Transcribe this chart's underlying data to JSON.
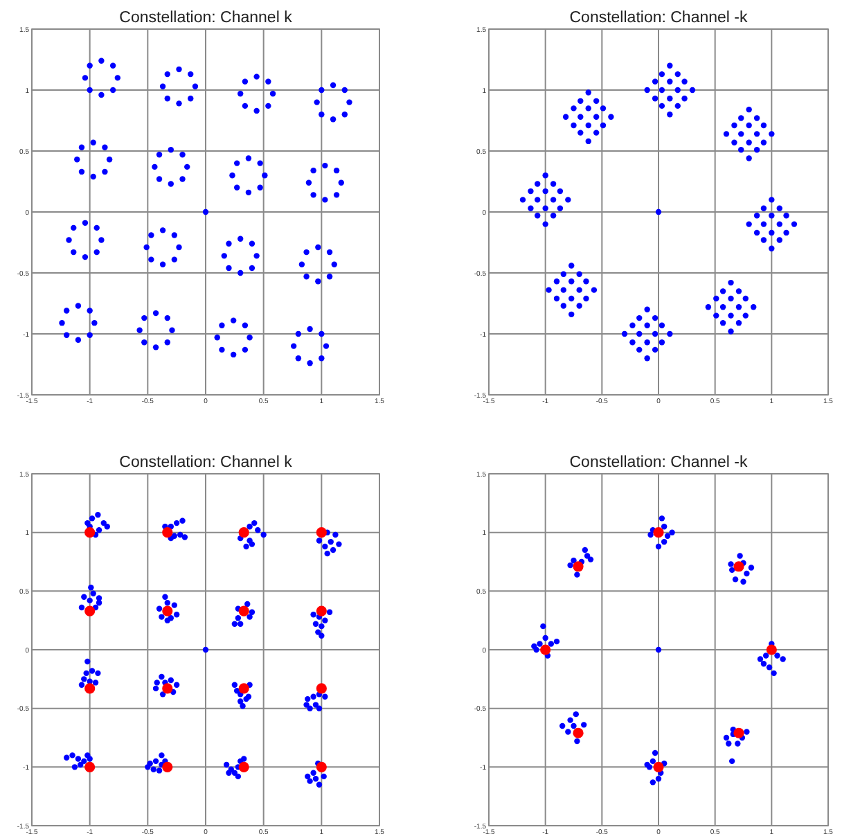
{
  "chart_data": [
    {
      "type": "scatter",
      "title": "Constellation: Channel k",
      "xlim": [
        -1.5,
        1.5
      ],
      "ylim": [
        -1.5,
        1.5
      ],
      "xticks": [
        -1.5,
        -1,
        -0.5,
        0,
        0.5,
        1,
        1.5
      ],
      "yticks": [
        -1.5,
        -1,
        -0.5,
        0,
        0.5,
        1,
        1.5
      ],
      "grid": true,
      "marker": "circle",
      "series": [
        {
          "color": "#0000ff",
          "x": [
            -0.76,
            -0.8,
            -0.9,
            -1.0,
            -1.04,
            -1.0,
            -0.9,
            -0.8
          ],
          "values": [
            1.1,
            1.2,
            1.24,
            1.2,
            1.1,
            1.0,
            0.96,
            1.0
          ]
        },
        {
          "color": "#0000ff",
          "x": [
            -0.09,
            -0.13,
            -0.23,
            -0.33,
            -0.37,
            -0.33,
            -0.23,
            -0.13
          ],
          "values": [
            1.03,
            1.13,
            1.17,
            1.13,
            1.03,
            0.93,
            0.89,
            0.93
          ]
        },
        {
          "color": "#0000ff",
          "x": [
            0.58,
            0.54,
            0.44,
            0.34,
            0.3,
            0.34,
            0.44,
            0.54
          ],
          "values": [
            0.97,
            1.07,
            1.11,
            1.07,
            0.97,
            0.87,
            0.83,
            0.87
          ]
        },
        {
          "color": "#0000ff",
          "x": [
            1.24,
            1.2,
            1.1,
            1.0,
            0.96,
            1.0,
            1.1,
            1.2
          ],
          "values": [
            0.9,
            1.0,
            1.04,
            1.0,
            0.9,
            0.8,
            0.76,
            0.8
          ]
        },
        {
          "color": "#0000ff",
          "x": [
            -0.83,
            -0.87,
            -0.97,
            -1.07,
            -1.11,
            -1.07,
            -0.97,
            -0.87
          ],
          "values": [
            0.43,
            0.53,
            0.57,
            0.53,
            0.43,
            0.33,
            0.29,
            0.33
          ]
        },
        {
          "color": "#0000ff",
          "x": [
            -0.16,
            -0.2,
            -0.3,
            -0.4,
            -0.44,
            -0.4,
            -0.3,
            -0.2
          ],
          "values": [
            0.37,
            0.47,
            0.51,
            0.47,
            0.37,
            0.27,
            0.23,
            0.27
          ]
        },
        {
          "color": "#0000ff",
          "x": [
            0.51,
            0.47,
            0.37,
            0.27,
            0.23,
            0.27,
            0.37,
            0.47
          ],
          "values": [
            0.3,
            0.4,
            0.44,
            0.4,
            0.3,
            0.2,
            0.16,
            0.2
          ]
        },
        {
          "color": "#0000ff",
          "x": [
            1.17,
            1.13,
            1.03,
            0.93,
            0.89,
            0.93,
            1.03,
            1.13
          ],
          "values": [
            0.24,
            0.34,
            0.38,
            0.34,
            0.24,
            0.14,
            0.1,
            0.14
          ]
        },
        {
          "color": "#0000ff",
          "x": [
            -0.9,
            -0.94,
            -1.04,
            -1.14,
            -1.18,
            -1.14,
            -1.04,
            -0.94
          ],
          "values": [
            -0.23,
            -0.13,
            -0.09,
            -0.13,
            -0.23,
            -0.33,
            -0.37,
            -0.33
          ]
        },
        {
          "color": "#0000ff",
          "x": [
            -0.23,
            -0.27,
            -0.37,
            -0.47,
            -0.51,
            -0.47,
            -0.37,
            -0.27
          ],
          "values": [
            -0.29,
            -0.19,
            -0.15,
            -0.19,
            -0.29,
            -0.39,
            -0.43,
            -0.39
          ]
        },
        {
          "color": "#0000ff",
          "x": [
            0.44,
            0.4,
            0.3,
            0.2,
            0.16,
            0.2,
            0.3,
            0.4
          ],
          "values": [
            -0.36,
            -0.26,
            -0.22,
            -0.26,
            -0.36,
            -0.46,
            -0.5,
            -0.46
          ]
        },
        {
          "color": "#0000ff",
          "x": [
            1.11,
            1.07,
            0.97,
            0.87,
            0.83,
            0.87,
            0.97,
            1.07
          ],
          "values": [
            -0.43,
            -0.33,
            -0.29,
            -0.33,
            -0.43,
            -0.53,
            -0.57,
            -0.53
          ]
        },
        {
          "color": "#0000ff",
          "x": [
            -0.96,
            -1.0,
            -1.1,
            -1.2,
            -1.24,
            -1.2,
            -1.1,
            -1.0
          ],
          "values": [
            -0.91,
            -0.81,
            -0.77,
            -0.81,
            -0.91,
            -1.01,
            -1.05,
            -1.01
          ]
        },
        {
          "color": "#0000ff",
          "x": [
            -0.29,
            -0.33,
            -0.43,
            -0.53,
            -0.57,
            -0.53,
            -0.43,
            -0.33
          ],
          "values": [
            -0.97,
            -0.87,
            -0.83,
            -0.87,
            -0.97,
            -1.07,
            -1.11,
            -1.07
          ]
        },
        {
          "color": "#0000ff",
          "x": [
            0.38,
            0.34,
            0.24,
            0.14,
            0.1,
            0.14,
            0.24,
            0.34
          ],
          "values": [
            -1.03,
            -0.93,
            -0.89,
            -0.93,
            -1.03,
            -1.13,
            -1.17,
            -1.13
          ]
        },
        {
          "color": "#0000ff",
          "x": [
            1.04,
            1.0,
            0.9,
            0.8,
            0.76,
            0.8,
            0.9,
            1.0
          ],
          "values": [
            -1.1,
            -1.0,
            -0.96,
            -1.0,
            -1.1,
            -1.2,
            -1.24,
            -1.2
          ]
        },
        {
          "color": "#0000ff",
          "x": [
            0
          ],
          "values": [
            0
          ]
        }
      ]
    },
    {
      "type": "scatter",
      "title": "Constellation: Channel -k",
      "xlim": [
        -1.5,
        1.5
      ],
      "ylim": [
        -1.5,
        1.5
      ],
      "xticks": [
        -1.5,
        -1,
        -0.5,
        0,
        0.5,
        1,
        1.5
      ],
      "yticks": [
        -1.5,
        -1,
        -0.5,
        0,
        0.5,
        1,
        1.5
      ],
      "grid": true,
      "marker": "circle",
      "series": [
        {
          "color": "#0000ff",
          "x": [
            -0.1,
            -0.03,
            0.03,
            0.1,
            -0.03,
            0.03,
            0.1,
            0.17,
            0.03,
            0.1,
            0.17,
            0.23,
            0.1,
            0.17,
            0.23,
            0.3
          ],
          "values": [
            1,
            0.93,
            0.87,
            0.8,
            1.07,
            1,
            0.93,
            0.87,
            1.13,
            1.07,
            1,
            0.93,
            1.2,
            1.13,
            1.07,
            1
          ]
        },
        {
          "color": "#0000ff",
          "x": [
            -0.82,
            -0.75,
            -0.69,
            -0.62,
            -0.75,
            -0.69,
            -0.62,
            -0.55,
            -0.69,
            -0.62,
            -0.55,
            -0.49,
            -0.62,
            -0.55,
            -0.49,
            -0.42
          ],
          "values": [
            0.78,
            0.71,
            0.65,
            0.58,
            0.85,
            0.78,
            0.71,
            0.65,
            0.91,
            0.85,
            0.78,
            0.71,
            0.98,
            0.91,
            0.85,
            0.78
          ]
        },
        {
          "color": "#0000ff",
          "x": [
            0.6,
            0.67,
            0.73,
            0.8,
            0.67,
            0.73,
            0.8,
            0.87,
            0.73,
            0.8,
            0.87,
            0.93,
            0.8,
            0.87,
            0.93,
            1.0
          ],
          "values": [
            0.64,
            0.57,
            0.51,
            0.44,
            0.71,
            0.64,
            0.57,
            0.51,
            0.77,
            0.71,
            0.64,
            0.57,
            0.84,
            0.77,
            0.71,
            0.64
          ]
        },
        {
          "color": "#0000ff",
          "x": [
            -1.2,
            -1.13,
            -1.07,
            -1,
            -1.13,
            -1.07,
            -1,
            -0.93,
            -1.07,
            -1,
            -0.93,
            -0.87,
            -1,
            -0.93,
            -0.87,
            -0.8
          ],
          "values": [
            0.1,
            0.03,
            -0.03,
            -0.1,
            0.17,
            0.1,
            0.03,
            -0.03,
            0.23,
            0.17,
            0.1,
            0.03,
            0.3,
            0.23,
            0.17,
            0.1
          ]
        },
        {
          "color": "#0000ff",
          "x": [
            0.8,
            0.87,
            0.93,
            1,
            0.87,
            0.93,
            1,
            1.07,
            0.93,
            1,
            1.07,
            1.13,
            1,
            1.07,
            1.13,
            1.2
          ],
          "values": [
            -0.1,
            -0.17,
            -0.23,
            -0.3,
            -0.03,
            -0.1,
            -0.17,
            -0.23,
            0.03,
            -0.03,
            -0.1,
            -0.17,
            0.1,
            0.03,
            -0.03,
            -0.1
          ]
        },
        {
          "color": "#0000ff",
          "x": [
            -0.97,
            -0.9,
            -0.84,
            -0.77,
            -0.9,
            -0.84,
            -0.77,
            -0.7,
            -0.84,
            -0.77,
            -0.7,
            -0.64,
            -0.77,
            -0.7,
            -0.64,
            -0.57
          ],
          "values": [
            -0.64,
            -0.71,
            -0.77,
            -0.84,
            -0.57,
            -0.64,
            -0.71,
            -0.77,
            -0.51,
            -0.57,
            -0.64,
            -0.71,
            -0.44,
            -0.51,
            -0.57,
            -0.64
          ]
        },
        {
          "color": "#0000ff",
          "x": [
            -0.3,
            -0.23,
            -0.17,
            -0.1,
            -0.23,
            -0.17,
            -0.1,
            -0.03,
            -0.17,
            -0.1,
            -0.03,
            0.03,
            -0.1,
            -0.03,
            0.03,
            0.1
          ],
          "values": [
            -1,
            -1.07,
            -1.13,
            -1.2,
            -0.93,
            -1,
            -1.07,
            -1.13,
            -0.87,
            -0.93,
            -1,
            -1.07,
            -0.8,
            -0.87,
            -0.93,
            -1
          ]
        },
        {
          "color": "#0000ff",
          "x": [
            0.44,
            0.51,
            0.57,
            0.64,
            0.51,
            0.57,
            0.64,
            0.71,
            0.57,
            0.64,
            0.71,
            0.77,
            0.64,
            0.71,
            0.77,
            0.84
          ],
          "values": [
            -0.78,
            -0.85,
            -0.91,
            -0.98,
            -0.71,
            -0.78,
            -0.85,
            -0.91,
            -0.65,
            -0.71,
            -0.78,
            -0.85,
            -0.58,
            -0.65,
            -0.71,
            -0.78
          ]
        },
        {
          "color": "#0000ff",
          "x": [
            0
          ],
          "values": [
            0
          ]
        }
      ]
    },
    {
      "type": "scatter",
      "title": "Constellation: Channel k",
      "xlim": [
        -1.5,
        1.5
      ],
      "ylim": [
        -1.5,
        1.5
      ],
      "xticks": [
        -1.5,
        -1,
        -0.5,
        0,
        0.5,
        1,
        1.5
      ],
      "yticks": [
        -1.5,
        -1,
        -0.5,
        0,
        0.5,
        1,
        1.5
      ],
      "grid": true,
      "marker": "circle",
      "series": [
        {
          "color": "#0000ff",
          "x": [
            -1,
            -0.98,
            -0.93,
            -0.88,
            -0.85,
            -0.92,
            -1.02,
            -0.95
          ],
          "values": [
            1.05,
            1.12,
            1.15,
            1.08,
            1.05,
            1.02,
            1.08,
            0.98
          ]
        },
        {
          "color": "#0000ff",
          "x": [
            -0.3,
            -0.25,
            -0.2,
            -0.22,
            -0.18,
            -0.27,
            -0.35,
            -0.3
          ],
          "values": [
            1.05,
            1.08,
            1.1,
            0.98,
            0.96,
            0.97,
            1.05,
            0.95
          ]
        },
        {
          "color": "#0000ff",
          "x": [
            0.38,
            0.42,
            0.5,
            0.38,
            0.35,
            0.4,
            0.3,
            0.45
          ],
          "values": [
            1.05,
            1.08,
            0.98,
            0.93,
            0.88,
            0.9,
            0.95,
            1.02
          ]
        },
        {
          "color": "#0000ff",
          "x": [
            1.05,
            1.12,
            1.08,
            1.03,
            1.1,
            0.98,
            1.05,
            1.15
          ],
          "values": [
            1.0,
            0.98,
            0.92,
            0.88,
            0.85,
            0.93,
            0.82,
            0.9
          ]
        },
        {
          "color": "#0000ff",
          "x": [
            -1,
            -0.97,
            -1.05,
            -0.92,
            -1.07,
            -0.95,
            -0.99,
            -0.92
          ],
          "values": [
            0.42,
            0.48,
            0.45,
            0.4,
            0.36,
            0.36,
            0.53,
            0.44
          ]
        },
        {
          "color": "#0000ff",
          "x": [
            -0.33,
            -0.35,
            -0.27,
            -0.4,
            -0.25,
            -0.3,
            -0.38,
            -0.33
          ],
          "values": [
            0.4,
            0.45,
            0.38,
            0.35,
            0.3,
            0.27,
            0.28,
            0.25
          ]
        },
        {
          "color": "#0000ff",
          "x": [
            0.28,
            0.38,
            0.28,
            0.4,
            0.3,
            0.25,
            0.36
          ],
          "values": [
            0.35,
            0.28,
            0.27,
            0.32,
            0.22,
            0.22,
            0.39
          ]
        },
        {
          "color": "#0000ff",
          "x": [
            0.98,
            1.03,
            0.95,
            1.0,
            0.97,
            1.07,
            1.0,
            0.93
          ],
          "values": [
            0.28,
            0.25,
            0.22,
            0.2,
            0.15,
            0.32,
            0.12,
            0.3
          ]
        },
        {
          "color": "#0000ff",
          "x": [
            -1,
            -1.03,
            -0.98,
            -1.02,
            -0.93,
            -1.07,
            -0.95,
            -1.05
          ],
          "values": [
            -0.27,
            -0.2,
            -0.18,
            -0.1,
            -0.2,
            -0.3,
            -0.28,
            -0.25
          ]
        },
        {
          "color": "#0000ff",
          "x": [
            -0.35,
            -0.38,
            -0.3,
            -0.43,
            -0.42,
            -0.28,
            -0.37,
            -0.25
          ],
          "values": [
            -0.28,
            -0.23,
            -0.26,
            -0.33,
            -0.28,
            -0.36,
            -0.38,
            -0.3
          ]
        },
        {
          "color": "#0000ff",
          "x": [
            0.3,
            0.27,
            0.35,
            0.3,
            0.38,
            0.25,
            0.32,
            0.37
          ],
          "values": [
            -0.38,
            -0.35,
            -0.42,
            -0.44,
            -0.3,
            -0.3,
            -0.48,
            -0.4
          ]
        },
        {
          "color": "#0000ff",
          "x": [
            0.98,
            0.93,
            0.88,
            0.95,
            0.9,
            1.03,
            0.98,
            0.87
          ],
          "values": [
            -0.38,
            -0.4,
            -0.42,
            -0.47,
            -0.5,
            -0.4,
            -0.5,
            -0.47
          ]
        },
        {
          "color": "#0000ff",
          "x": [
            -1.05,
            -1.1,
            -1.15,
            -1.2,
            -1.08,
            -1.13,
            -1.02,
            -1.0
          ],
          "values": [
            -0.95,
            -0.93,
            -0.9,
            -0.92,
            -0.98,
            -1.0,
            -0.9,
            -0.93
          ]
        },
        {
          "color": "#0000ff",
          "x": [
            -0.38,
            -0.43,
            -0.48,
            -0.4,
            -0.45,
            -0.38,
            -0.5,
            -0.35
          ],
          "values": [
            -0.98,
            -0.95,
            -0.97,
            -1.03,
            -1.02,
            -0.9,
            -1.0,
            -0.95
          ]
        },
        {
          "color": "#0000ff",
          "x": [
            0.28,
            0.22,
            0.25,
            0.18,
            0.3,
            0.28,
            0.2,
            0.33
          ],
          "values": [
            -1.0,
            -1.02,
            -1.05,
            -0.98,
            -0.95,
            -1.08,
            -1.05,
            -0.93
          ]
        },
        {
          "color": "#0000ff",
          "x": [
            0.93,
            0.95,
            0.9,
            0.98,
            0.88,
            1.02,
            0.97
          ],
          "values": [
            -1.05,
            -1.1,
            -1.12,
            -1.15,
            -1.08,
            -1.08,
            -0.97
          ]
        },
        {
          "color": "#0000ff",
          "x": [
            0
          ],
          "values": [
            0
          ]
        },
        {
          "color": "#ff0000",
          "x": [
            -1,
            -0.33,
            0.33,
            1,
            -1,
            -0.33,
            0.33,
            1,
            -1,
            -0.33,
            0.33,
            1,
            -1,
            -0.33,
            0.33,
            1
          ],
          "values": [
            1,
            1,
            1,
            1,
            0.33,
            0.33,
            0.33,
            0.33,
            -0.33,
            -0.33,
            -0.33,
            -0.33,
            -1,
            -1,
            -1,
            -1
          ]
        }
      ]
    },
    {
      "type": "scatter",
      "title": "Constellation: Channel -k",
      "xlim": [
        -1.5,
        1.5
      ],
      "ylim": [
        -1.5,
        1.5
      ],
      "xticks": [
        -1.5,
        -1,
        -0.5,
        0,
        0.5,
        1,
        1.5
      ],
      "yticks": [
        -1.5,
        -1,
        -0.5,
        0,
        0.5,
        1,
        1.5
      ],
      "grid": true,
      "marker": "circle",
      "series": [
        {
          "color": "#0000ff",
          "x": [
            -0.05,
            0.05,
            0.03,
            0.08,
            -0.07,
            0.05,
            0.12,
            0.0
          ],
          "values": [
            1.02,
            1.05,
            1.12,
            0.97,
            0.98,
            0.92,
            1.0,
            0.88
          ]
        },
        {
          "color": "#0000ff",
          "x": [
            0.65,
            0.75,
            0.78,
            0.72,
            0.68,
            0.82,
            0.75,
            0.64
          ],
          "values": [
            0.68,
            0.74,
            0.65,
            0.8,
            0.6,
            0.7,
            0.58,
            0.73
          ]
        },
        {
          "color": "#0000ff",
          "x": [
            0.95,
            0.9,
            1.05,
            1.1,
            0.98,
            1.02,
            0.93,
            1.0
          ],
          "values": [
            -0.05,
            -0.08,
            -0.05,
            -0.08,
            -0.15,
            -0.2,
            -0.12,
            0.05
          ]
        },
        {
          "color": "#0000ff",
          "x": [
            0.66,
            0.6,
            0.66,
            0.74,
            0.7,
            0.62,
            0.78,
            0.65
          ],
          "values": [
            -0.72,
            -0.75,
            -0.68,
            -0.75,
            -0.8,
            -0.8,
            -0.7,
            -0.95
          ]
        },
        {
          "color": "#0000ff",
          "x": [
            -0.05,
            -0.03,
            0.02,
            -0.08,
            0.0,
            -0.05,
            0.05,
            -0.1
          ],
          "values": [
            -0.95,
            -0.88,
            -1.05,
            -1.0,
            -1.1,
            -1.13,
            -0.97,
            -0.98
          ]
        },
        {
          "color": "#0000ff",
          "x": [
            -0.75,
            -0.78,
            -0.73,
            -0.8,
            -0.72,
            -0.66,
            -0.85
          ],
          "values": [
            -0.65,
            -0.6,
            -0.55,
            -0.7,
            -0.78,
            -0.64,
            -0.65
          ]
        },
        {
          "color": "#0000ff",
          "x": [
            -1.05,
            -0.95,
            -1.1,
            -0.9,
            -1.0,
            -0.98,
            -1.02,
            -1.08
          ],
          "values": [
            0.05,
            0.05,
            0.03,
            0.07,
            0.1,
            -0.05,
            0.2,
            0.0
          ]
        },
        {
          "color": "#0000ff",
          "x": [
            -0.68,
            -0.75,
            -0.63,
            -0.6,
            -0.65,
            -0.78,
            -0.72
          ],
          "values": [
            0.75,
            0.76,
            0.8,
            0.77,
            0.85,
            0.72,
            0.64
          ]
        },
        {
          "color": "#0000ff",
          "x": [
            0
          ],
          "values": [
            0
          ]
        },
        {
          "color": "#ff0000",
          "x": [
            0,
            0.71,
            1,
            0.71,
            0,
            -0.71,
            -1,
            -0.71
          ],
          "values": [
            1,
            0.71,
            0,
            -0.71,
            -1,
            -0.71,
            0,
            0.71
          ]
        }
      ]
    }
  ]
}
